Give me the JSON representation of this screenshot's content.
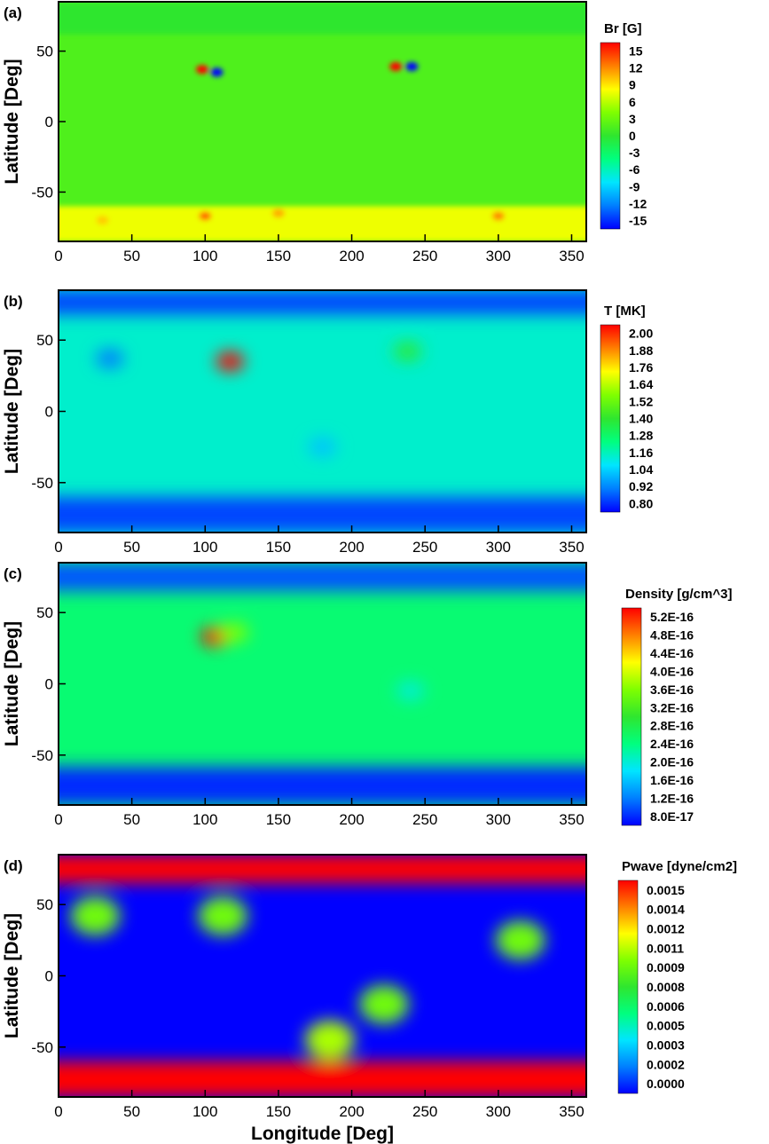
{
  "colors": {
    "colormap": [
      "#0000ff",
      "#007fff",
      "#00e5ff",
      "#00ff7f",
      "#2fe62f",
      "#7fff00",
      "#ffff00",
      "#ff7f00",
      "#ff0000"
    ],
    "axis": "#000000"
  },
  "chart_data": [
    {
      "type": "heatmap",
      "panel_label": "(a)",
      "xlabel": "",
      "ylabel": "Latitude [Deg]",
      "xlim": [
        0,
        360
      ],
      "ylim": [
        -85,
        85
      ],
      "xticks": [
        "0",
        "50",
        "100",
        "150",
        "200",
        "250",
        "300",
        "350"
      ],
      "yticks": [
        "50",
        "0",
        "-50"
      ],
      "colorbar": {
        "title": "Br [G]",
        "range": [
          -15,
          15
        ],
        "labels": [
          "15",
          "12",
          "9",
          "6",
          "3",
          "0",
          "-3",
          "-6",
          "-9",
          "-12",
          "-15"
        ]
      },
      "background_value": 1.5,
      "features": [
        {
          "lon": 98,
          "lat": 37,
          "value": 15
        },
        {
          "lon": 108,
          "lat": 35,
          "value": -15
        },
        {
          "lon": 230,
          "lat": 39,
          "value": 15
        },
        {
          "lon": 241,
          "lat": 39,
          "value": -15
        },
        {
          "lon": 100,
          "lat": -67,
          "value": 12
        },
        {
          "lon": 150,
          "lat": -65,
          "value": 10
        },
        {
          "lon": 300,
          "lat": -67,
          "value": 11
        },
        {
          "lon": 30,
          "lat": -70,
          "value": 9
        }
      ],
      "bands": [
        {
          "lat_min": -85,
          "lat_max": -60,
          "value": 7
        },
        {
          "lat_min": 62,
          "lat_max": 85,
          "value": 0
        }
      ]
    },
    {
      "type": "heatmap",
      "panel_label": "(b)",
      "xlabel": "",
      "ylabel": "Latitude [Deg]",
      "xlim": [
        0,
        360
      ],
      "ylim": [
        -85,
        85
      ],
      "xticks": [
        "0",
        "50",
        "100",
        "150",
        "200",
        "250",
        "300",
        "350"
      ],
      "yticks": [
        "50",
        "0",
        "-50"
      ],
      "colorbar": {
        "title": "T [MK]",
        "range": [
          0.8,
          2.0
        ],
        "labels": [
          "2.00",
          "1.88",
          "1.76",
          "1.64",
          "1.52",
          "1.40",
          "1.28",
          "1.16",
          "1.04",
          "0.92",
          "0.80"
        ]
      },
      "background_value": 1.16,
      "features": [
        {
          "lon": 117,
          "lat": 35,
          "value": 2.0
        },
        {
          "lon": 238,
          "lat": 42,
          "value": 1.38
        },
        {
          "lon": 35,
          "lat": 37,
          "value": 0.95
        },
        {
          "lon": 180,
          "lat": -25,
          "value": 1.05
        }
      ],
      "bands": [
        {
          "lat_min": -85,
          "lat_max": -60,
          "value": 0.88
        },
        {
          "lat_min": 68,
          "lat_max": 85,
          "value": 0.88
        }
      ]
    },
    {
      "type": "heatmap",
      "panel_label": "(c)",
      "xlabel": "",
      "ylabel": "Latitude [Deg]",
      "xlim": [
        0,
        360
      ],
      "ylim": [
        -85,
        85
      ],
      "xticks": [
        "0",
        "50",
        "100",
        "150",
        "200",
        "250",
        "300",
        "350"
      ],
      "yticks": [
        "50",
        "0",
        "-50"
      ],
      "colorbar": {
        "title": "Density [g/cm^3]",
        "range": [
          8e-17,
          5.6e-16
        ],
        "labels": [
          "5.2E-16",
          "4.8E-16",
          "4.4E-16",
          "4.0E-16",
          "3.6E-16",
          "3.2E-16",
          "2.8E-16",
          "2.4E-16",
          "2.0E-16",
          "1.6E-16",
          "1.2E-16",
          "8.0E-17"
        ]
      },
      "background_value": 2.7e-16,
      "features": [
        {
          "lon": 107,
          "lat": 33,
          "value": 5.6e-16
        },
        {
          "lon": 120,
          "lat": 36,
          "value": 3.8e-16
        },
        {
          "lon": 240,
          "lat": -5,
          "value": 2.2e-16
        }
      ],
      "bands": [
        {
          "lat_min": -85,
          "lat_max": -58,
          "value": 1e-16
        },
        {
          "lat_min": 65,
          "lat_max": 85,
          "value": 1.2e-16
        }
      ]
    },
    {
      "type": "heatmap",
      "panel_label": "(d)",
      "xlabel": "Longitude [Deg]",
      "ylabel": "Latitude [Deg]",
      "xlim": [
        0,
        360
      ],
      "ylim": [
        -85,
        85
      ],
      "xticks": [
        "0",
        "50",
        "100",
        "150",
        "200",
        "250",
        "300",
        "350"
      ],
      "yticks": [
        "50",
        "0",
        "-50"
      ],
      "colorbar": {
        "title": "Pwave [dyne/cm2]",
        "range": [
          0.0,
          0.0015
        ],
        "labels": [
          "0.0015",
          "0.0014",
          "0.0012",
          "0.0011",
          "0.0009",
          "0.0008",
          "0.0006",
          "0.0005",
          "0.0003",
          "0.0002",
          "0.0000"
        ]
      },
      "background_value": 0.0,
      "features": [
        {
          "lon": 25,
          "lat": 42,
          "value": 0.0009
        },
        {
          "lon": 112,
          "lat": 42,
          "value": 0.0009
        },
        {
          "lon": 315,
          "lat": 25,
          "value": 0.0009
        },
        {
          "lon": 185,
          "lat": -45,
          "value": 0.001
        },
        {
          "lon": 222,
          "lat": -20,
          "value": 0.0009
        }
      ],
      "bands": [
        {
          "lat_min": -85,
          "lat_max": -60,
          "value": 0.0015
        },
        {
          "lat_min": 65,
          "lat_max": 85,
          "value": 0.0015
        }
      ]
    }
  ]
}
